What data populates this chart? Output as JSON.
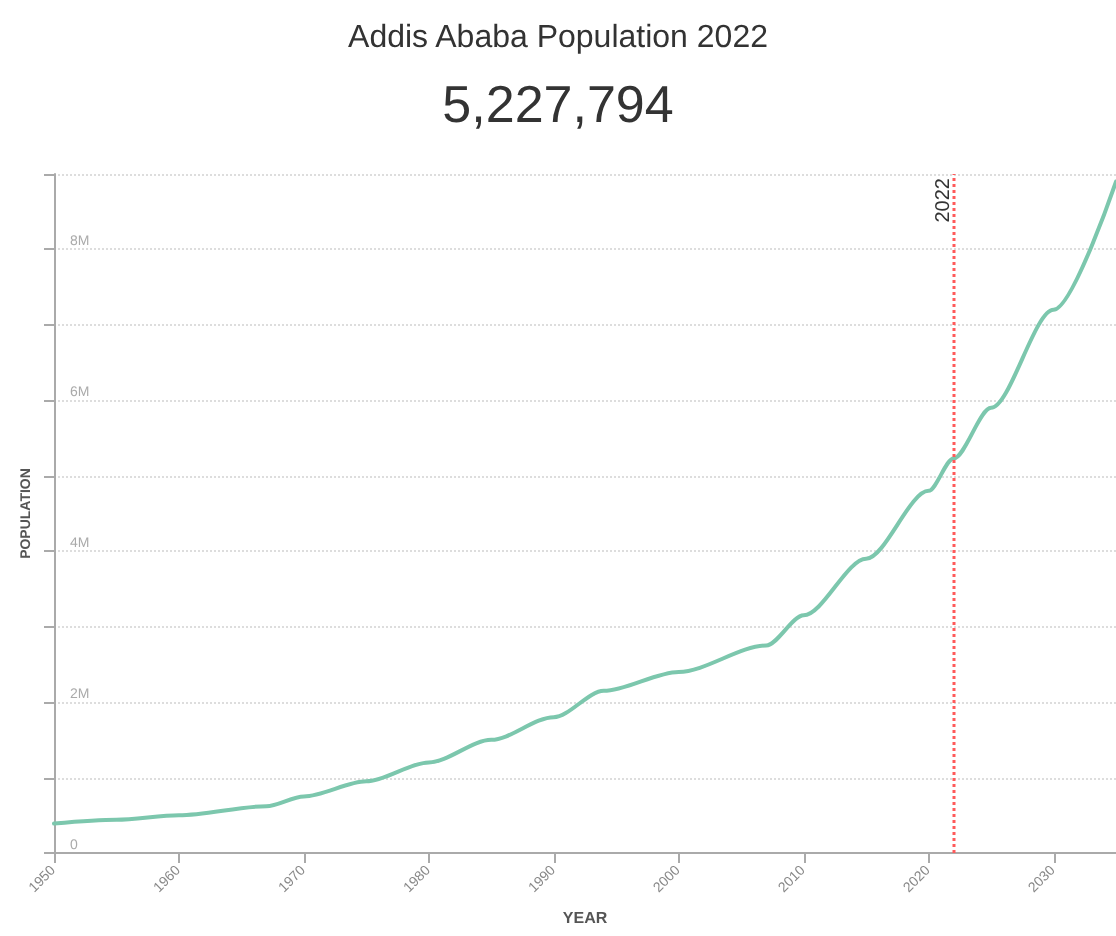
{
  "chart_data": {
    "type": "line",
    "title": "Addis Ababa Population 2022",
    "subtitle": "5,227,794",
    "xlabel": "YEAR",
    "ylabel": "POPULATION",
    "x": [
      1950,
      1955,
      1960,
      1967,
      1970,
      1975,
      1980,
      1985,
      1990,
      1994,
      2000,
      2007,
      2010,
      2015,
      2020,
      2022,
      2025,
      2030,
      2035
    ],
    "series": [
      {
        "color": "#7cc7ad",
        "values": [
          390000,
          440000,
          500000,
          620000,
          750000,
          950000,
          1200000,
          1500000,
          1800000,
          2150000,
          2400000,
          2750000,
          3150000,
          3900000,
          4800000,
          5230000,
          5900000,
          7200000,
          8900000
        ]
      }
    ],
    "xlim": [
      1950,
      2035
    ],
    "xticks": [
      1950,
      1960,
      1970,
      1980,
      1990,
      2000,
      2010,
      2020,
      2030
    ],
    "ylim": [
      0,
      9000000
    ],
    "yticks": [
      {
        "value": 0,
        "label": "0"
      },
      {
        "value": 1000000,
        "label": null
      },
      {
        "value": 2000000,
        "label": "2M"
      },
      {
        "value": 3000000,
        "label": null
      },
      {
        "value": 4000000,
        "label": "4M"
      },
      {
        "value": 5000000,
        "label": null
      },
      {
        "value": 6000000,
        "label": "6M"
      },
      {
        "value": 7000000,
        "label": null
      },
      {
        "value": 8000000,
        "label": "8M"
      },
      {
        "value": 9000000,
        "label": null
      }
    ],
    "ref_lines": [
      {
        "axis": "x",
        "value": 2022,
        "label": "2022",
        "color": "#ff5a5a",
        "line_style": "dotted"
      }
    ],
    "grid": "y",
    "marker": "none",
    "line_style": "solid"
  }
}
